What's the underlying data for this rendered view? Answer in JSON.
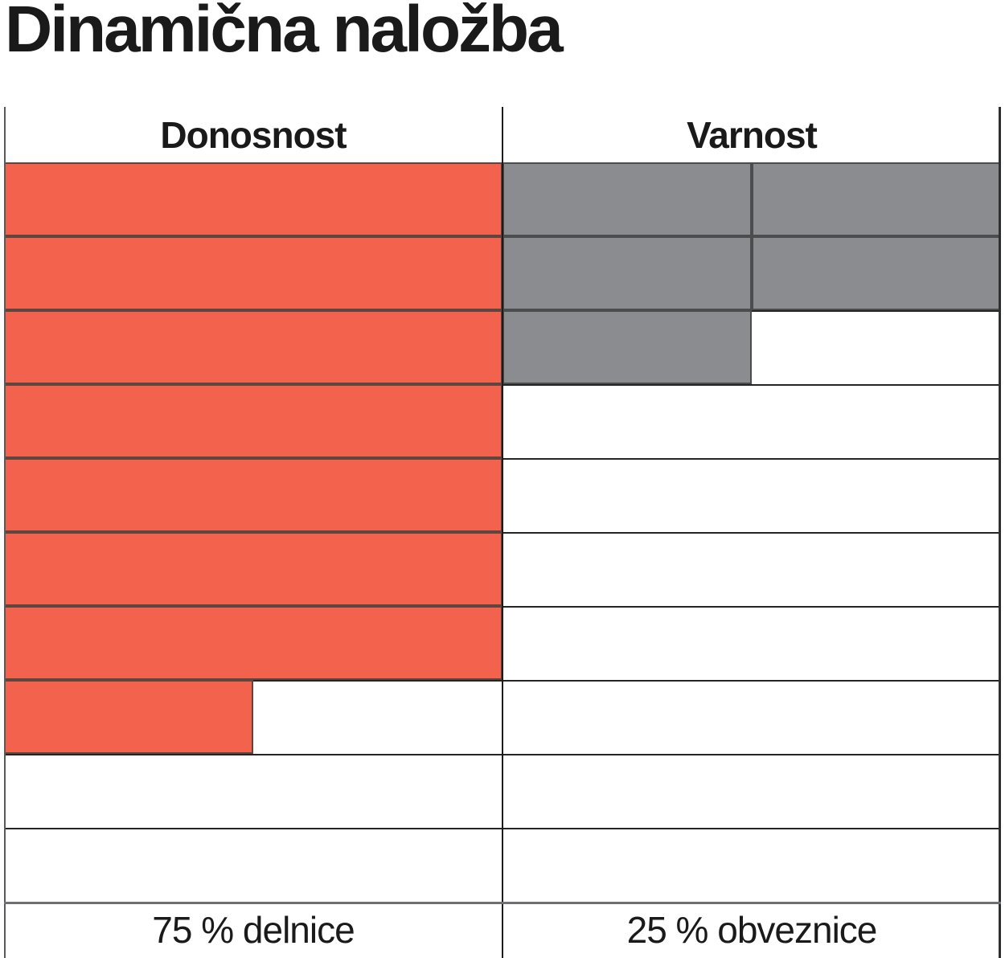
{
  "title": "Dinamična naložba",
  "table": {
    "columns": [
      {
        "header": "Donosnost",
        "footer": "75 % delnice"
      },
      {
        "header": "Varnost",
        "footer": "25 % obveznice"
      }
    ]
  },
  "chart_data": {
    "type": "bar",
    "title": "Dinamična naložba",
    "subtitle": "rating grid: each column filled top-to-bottom, 10 rows = max score",
    "categories": [
      "Donosnost",
      "Varnost"
    ],
    "values": [
      7.5,
      2.5
    ],
    "max_rows": 10,
    "donosnost_row_fill": [
      1,
      1,
      1,
      1,
      1,
      1,
      1,
      0.5,
      0,
      0
    ],
    "varnost_row_fill": [
      1,
      1,
      0.5,
      0,
      0,
      0,
      0,
      0,
      0,
      0
    ],
    "varnost_rendered_as_half_cells": true,
    "annotations": [
      "75 % delnice",
      "25 % obveznice"
    ],
    "legend_position": "none",
    "grid": true
  },
  "colors": {
    "orange": "#F2624C",
    "orange_border": "#5E453E",
    "gray": "#8A8C8F",
    "gray_border": "#4B4C4E",
    "grid_line": "#242424",
    "footer_line": "#6E7073",
    "left_border": "#595A5C",
    "right_border": "#2E2F31",
    "center_divider": "#1B1B1B",
    "text": "#1A1A1A"
  }
}
